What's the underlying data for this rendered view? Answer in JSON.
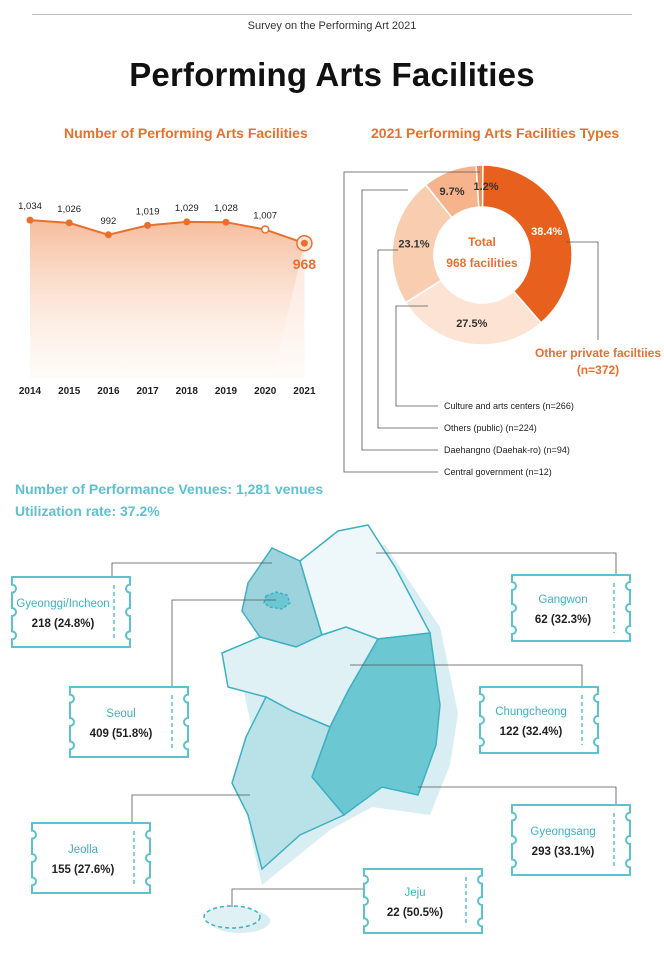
{
  "header": {
    "survey": "Survey on the Performing Art 2021",
    "title": "Performing Arts Facilities"
  },
  "line_section": {
    "title": "Number of Performing Arts Facilities"
  },
  "donut_section": {
    "title": "2021 Performing Arts Facilities Types",
    "center_label_1": "Total",
    "center_label_2": "968 facilities",
    "callout_1": "Other private faciltiies",
    "callout_2": "(n=372)",
    "legend": [
      "Culture and arts centers (n=266)",
      "Others (public) (n=224)",
      "Daehangno (Daehak-ro) (n=94)",
      "Central government (n=12)"
    ]
  },
  "venues": {
    "title": "Number of Performance Venues: 1,281 venues",
    "utilization": "Utilization rate: 37.2%"
  },
  "regions": [
    {
      "name": "Gyeonggi/Incheon",
      "value": "218 (24.8%)"
    },
    {
      "name": "Seoul",
      "value": "409 (51.8%)"
    },
    {
      "name": "Jeolla",
      "value": "155 (27.6%)"
    },
    {
      "name": "Gangwon",
      "value": "62 (32.3%)"
    },
    {
      "name": "Chungcheong",
      "value": "122 (32.4%)"
    },
    {
      "name": "Gyeongsang",
      "value": "293 (33.1%)"
    },
    {
      "name": "Jeju",
      "value": "22 (50.5%)"
    }
  ],
  "colors": {
    "orange": "#e8702f",
    "dark_orange": "#e8601e",
    "teal": "#5cc2cf"
  },
  "chart_data": [
    {
      "type": "line",
      "title": "Number of Performing Arts Facilities",
      "x": [
        "2014",
        "2015",
        "2016",
        "2017",
        "2018",
        "2019",
        "2020",
        "2021"
      ],
      "series": [
        {
          "values": [
            1034,
            1026,
            992,
            1019,
            1029,
            1028,
            1007,
            968
          ]
        }
      ],
      "data_labels": [
        "1,034",
        "1,026",
        "992",
        "1,019",
        "1,029",
        "1,028",
        "1,007",
        "968"
      ],
      "ylim": [
        0,
        1100
      ],
      "grid": false
    },
    {
      "type": "pie",
      "title": "2021 Performing Arts Facilities Types",
      "categories": [
        "Other private faciltiies",
        "Culture and arts centers",
        "Others (public)",
        "Daehangno (Daehak-ro)",
        "Central government"
      ],
      "values": [
        38.4,
        27.5,
        23.1,
        9.7,
        1.2
      ],
      "counts": [
        372,
        266,
        224,
        94,
        12
      ],
      "labels": [
        "38.4%",
        "27.5%",
        "23.1%",
        "9.7%",
        "1.2%"
      ],
      "colors": [
        "#e8601e",
        "#fce3d3",
        "#f9cdb0",
        "#f6b38c",
        "#ee8a56"
      ]
    }
  ]
}
